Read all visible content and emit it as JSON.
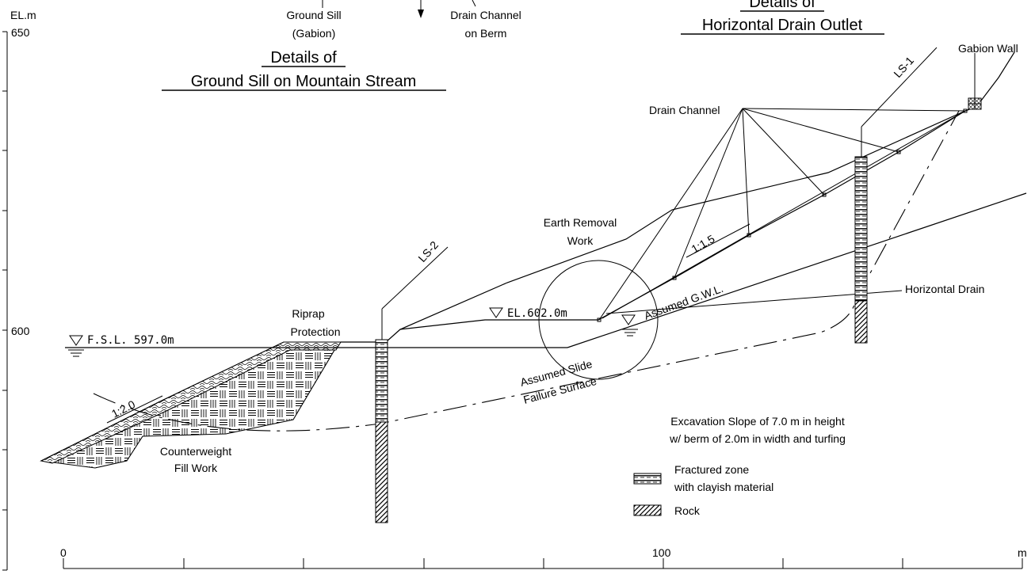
{
  "axis": {
    "y_unit": "EL.m",
    "y_tick_650": "650",
    "y_tick_600": "600",
    "x_tick_0": "0",
    "x_tick_100": "100",
    "x_unit": "m"
  },
  "headings": {
    "ground_sill_details_line1": "Details of",
    "ground_sill_details_line2": "Ground Sill on Mountain Stream",
    "drain_outlet_details_line1": "Details of",
    "drain_outlet_details_line2": "Horizontal Drain Outlet"
  },
  "top_labels": {
    "ground_sill_line1": "Ground Sill",
    "ground_sill_line2": "(Gabion)",
    "drain_channel_berm_line1": "Drain Channel",
    "drain_channel_berm_line2": "on Berm"
  },
  "labels": {
    "gabion_wall": "Gabion Wall",
    "ls1": "LS-1",
    "ls2": "LS-2",
    "drain_channel": "Drain Channel",
    "earth_removal_line1": "Earth Removal",
    "earth_removal_line2": "Work",
    "slope_upper": "1:1.5",
    "slope_lower": "1:2.0",
    "horizontal_drain": "Horizontal Drain",
    "el_602": "EL.602.0m",
    "assumed_gwl": "Assumed G.W.L.",
    "fsl": "F.S.L. 597.0m",
    "riprap_line1": "Riprap",
    "riprap_line2": "Protection",
    "slide_line1": "Assumed Slide",
    "slide_line2": "Failure Surface",
    "counterweight_line1": "Counterweight",
    "counterweight_line2": "Fill Work",
    "excavation_line1": "Excavation Slope of 7.0 m in height",
    "excavation_line2": "w/ berm of 2.0m in width and turfing"
  },
  "legend": {
    "fractured_line1": "Fractured zone",
    "fractured_line2": "with clayish material",
    "rock": "Rock"
  }
}
